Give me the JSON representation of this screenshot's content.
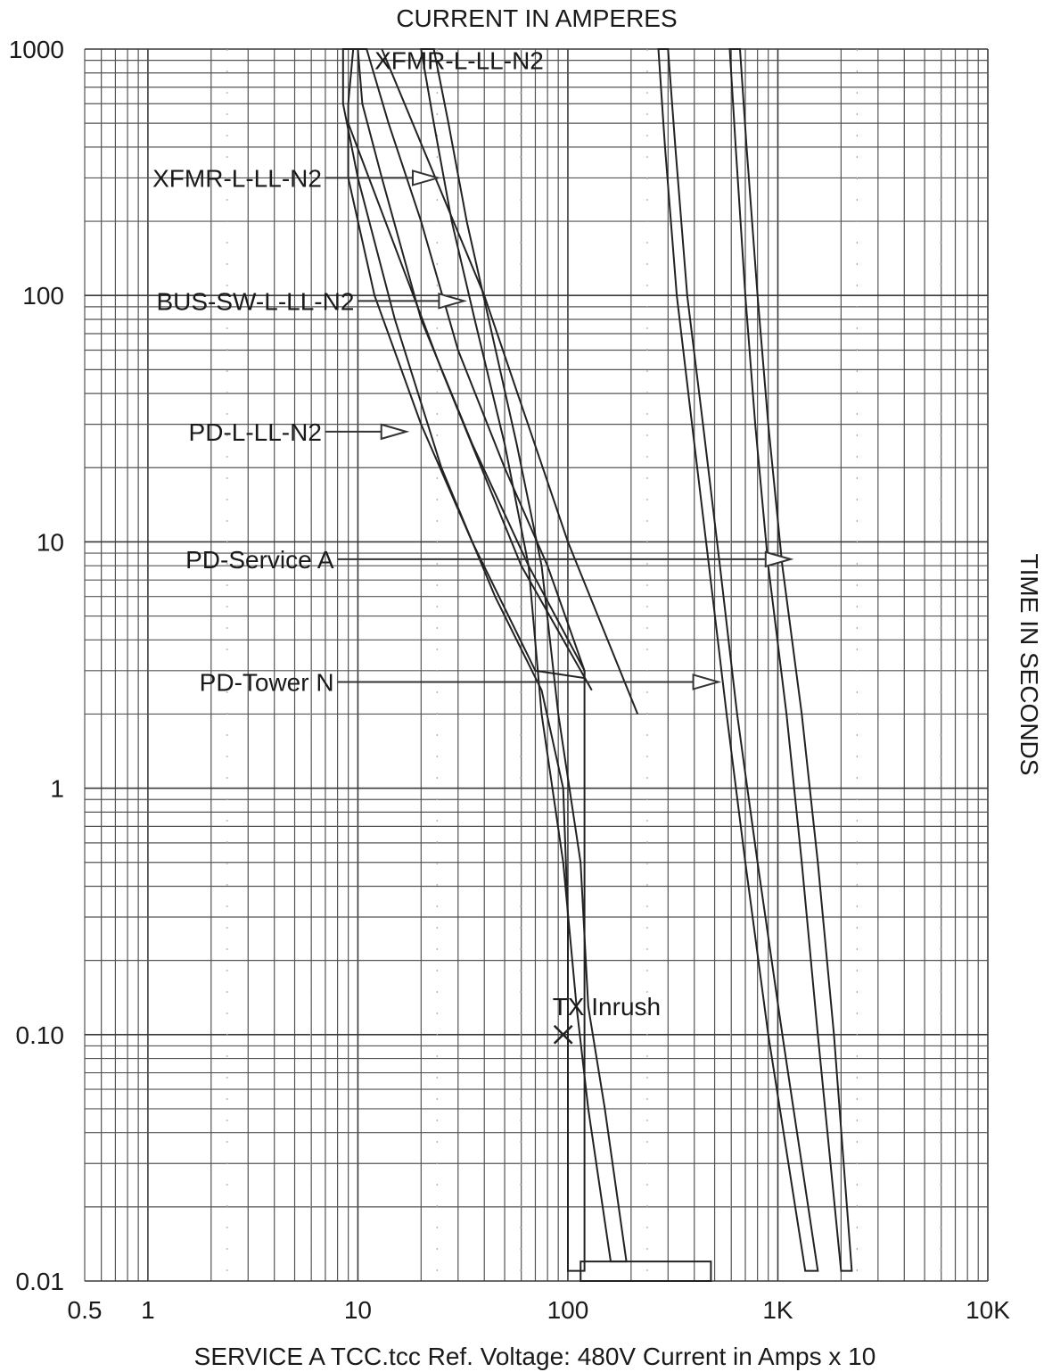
{
  "chart_data": {
    "type": "line",
    "title": "CURRENT IN AMPERES",
    "xlabel": "SERVICE A TCC.tcc Ref. Voltage: 480V  Current in Amps x 10",
    "ylabel": "TIME IN SECONDS",
    "xscale": "log",
    "yscale": "log",
    "xlim": [
      0.5,
      10000
    ],
    "ylim": [
      0.01,
      1000
    ],
    "xticks": [
      {
        "value": 0.5,
        "label": "0.5"
      },
      {
        "value": 1,
        "label": "1"
      },
      {
        "value": 10,
        "label": "10"
      },
      {
        "value": 100,
        "label": "100"
      },
      {
        "value": 1000,
        "label": "1K"
      },
      {
        "value": 10000,
        "label": "10K"
      }
    ],
    "yticks": [
      {
        "value": 1000,
        "label": "1000"
      },
      {
        "value": 100,
        "label": "100"
      },
      {
        "value": 10,
        "label": "10"
      },
      {
        "value": 1,
        "label": "1"
      },
      {
        "value": 0.1,
        "label": "0.10"
      },
      {
        "value": 0.01,
        "label": "0.01"
      }
    ],
    "grid": true,
    "series": [
      {
        "name": "XFMR-L-LL-N2",
        "pattern": "hatch",
        "left": [
          [
            9.5,
            1000
          ],
          [
            9,
            600
          ],
          [
            9,
            300
          ],
          [
            12,
            100
          ],
          [
            20,
            30
          ],
          [
            35,
            10
          ],
          [
            70,
            3
          ],
          [
            120,
            2.8
          ]
        ],
        "right": [
          [
            11,
            1000
          ],
          [
            14,
            500
          ],
          [
            20,
            200
          ],
          [
            30,
            60
          ],
          [
            50,
            20
          ],
          [
            80,
            8
          ],
          [
            120,
            3
          ]
        ]
      },
      {
        "name": "BUS-SW-L-LL-N2",
        "pattern": "crosshatch",
        "left": [
          [
            20,
            1000
          ],
          [
            23,
            500
          ],
          [
            28,
            200
          ],
          [
            36,
            80
          ],
          [
            50,
            25
          ],
          [
            65,
            8
          ],
          [
            75,
            2
          ],
          [
            95,
            0.5
          ],
          [
            110,
            0.13
          ],
          [
            125,
            0.05
          ],
          [
            160,
            0.012
          ]
        ],
        "right": [
          [
            23,
            1000
          ],
          [
            27,
            500
          ],
          [
            33,
            200
          ],
          [
            42,
            80
          ],
          [
            57,
            25
          ],
          [
            75,
            8
          ],
          [
            90,
            2
          ],
          [
            115,
            0.5
          ],
          [
            125,
            0.13
          ],
          [
            150,
            0.05
          ],
          [
            190,
            0.012
          ]
        ]
      },
      {
        "name": "PD-L-LL-N2",
        "pattern": "hatch",
        "left": [
          [
            8.5,
            1000
          ],
          [
            8.5,
            600
          ],
          [
            10,
            300
          ],
          [
            15,
            80
          ],
          [
            25,
            20
          ],
          [
            45,
            6
          ],
          [
            75,
            2.5
          ],
          [
            95,
            1
          ],
          [
            100,
            0.3
          ],
          [
            100,
            0.011
          ]
        ],
        "right": [
          [
            10,
            1000
          ],
          [
            10.5,
            600
          ],
          [
            13,
            300
          ],
          [
            20,
            80
          ],
          [
            35,
            25
          ],
          [
            65,
            8
          ],
          [
            120,
            3
          ],
          [
            120,
            2.8
          ],
          [
            120,
            0.011
          ]
        ]
      },
      {
        "name": "PD-Service A",
        "pattern": "dense",
        "left": [
          [
            590,
            1000
          ],
          [
            630,
            400
          ],
          [
            700,
            100
          ],
          [
            780,
            30
          ],
          [
            900,
            8
          ],
          [
            1100,
            2
          ],
          [
            1300,
            0.5
          ],
          [
            1550,
            0.1
          ],
          [
            2000,
            0.011
          ]
        ],
        "right": [
          [
            660,
            1000
          ],
          [
            710,
            400
          ],
          [
            800,
            100
          ],
          [
            900,
            30
          ],
          [
            1050,
            8
          ],
          [
            1300,
            2
          ],
          [
            1550,
            0.5
          ],
          [
            1850,
            0.1
          ],
          [
            2250,
            0.011
          ]
        ]
      },
      {
        "name": "PD-Tower N",
        "pattern": "dense",
        "left": [
          [
            270,
            1000
          ],
          [
            290,
            400
          ],
          [
            330,
            100
          ],
          [
            390,
            30
          ],
          [
            470,
            8
          ],
          [
            570,
            2
          ],
          [
            700,
            0.5
          ],
          [
            900,
            0.1
          ],
          [
            1350,
            0.011
          ]
        ],
        "right": [
          [
            300,
            1000
          ],
          [
            325,
            400
          ],
          [
            370,
            100
          ],
          [
            440,
            30
          ],
          [
            530,
            8
          ],
          [
            640,
            2
          ],
          [
            800,
            0.5
          ],
          [
            1050,
            0.1
          ],
          [
            1550,
            0.011
          ]
        ]
      }
    ],
    "lines": [
      {
        "points": [
          [
            13,
            1000
          ],
          [
            40,
            100
          ],
          [
            100,
            10
          ],
          [
            215,
            2
          ]
        ]
      },
      {
        "points": [
          [
            9,
            500
          ],
          [
            25,
            50
          ],
          [
            60,
            8
          ],
          [
            130,
            2.5
          ]
        ]
      }
    ],
    "base_bar": {
      "x1": 115,
      "x2": 480,
      "y1": 0.01,
      "y2": 0.012
    },
    "annotations": [
      {
        "text": "XFMR-L-LL-N2",
        "target": [
          12,
          900
        ],
        "position": "top-center"
      },
      {
        "text": "XFMR-L-LL-N2",
        "from": [
          7,
          300
        ],
        "to": [
          24,
          300
        ]
      },
      {
        "text": "BUS-SW-L-LL-N2",
        "from": [
          10,
          95
        ],
        "to": [
          32,
          95
        ]
      },
      {
        "text": "PD-L-LL-N2",
        "from": [
          7,
          28
        ],
        "to": [
          17,
          28
        ]
      },
      {
        "text": "PD-Service A",
        "from": [
          8,
          8.5
        ],
        "to": [
          1150,
          8.5
        ]
      },
      {
        "text": "PD-Tower N",
        "from": [
          8,
          2.7
        ],
        "to": [
          520,
          2.7
        ]
      },
      {
        "text": "TX Inrush",
        "target": [
          95,
          0.1
        ],
        "marker": "x"
      }
    ]
  }
}
